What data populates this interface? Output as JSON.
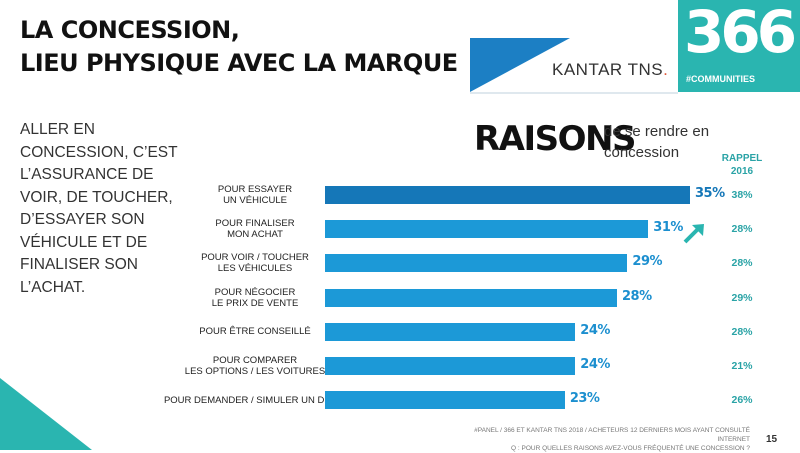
{
  "header": {
    "title_line1": "LA CONCESSION,",
    "title_line2": "LIEU PHYSIQUE AVEC LA MARQUE"
  },
  "body_text": "ALLER EN\nCONCESSION, C’EST\nL’ASSURANCE DE\nVOIR, DE TOUCHER,\nD’ESSAYER SON\nVÉHICULE ET DE\nFINALISER SON\nL’ACHAT.",
  "logo": {
    "number": "366",
    "communities": "#COMMUNITIES",
    "kantar_main": "KANTAR TNS",
    "kantar_mark": "."
  },
  "chart_data": {
    "type": "bar",
    "orientation": "horizontal",
    "title": "RAISONS",
    "subtitle": "de se rendre en concession",
    "categories": [
      "POUR ESSAYER\nUN VÉHICULE",
      "POUR FINALISER\nMON ACHAT",
      "POUR VOIR / TOUCHER\nLES VÉHICULES",
      "POUR NÉGOCIER\nLE PRIX DE VENTE",
      "POUR ÊTRE CONSEILLÉ",
      "POUR COMPARER\nLES OPTIONS / LES VOITURES",
      "POUR DEMANDER / SIMULER UN DEVIS"
    ],
    "values": [
      35,
      31,
      29,
      28,
      24,
      24,
      23
    ],
    "value_labels": [
      "35%",
      "31%",
      "29%",
      "28%",
      "24%",
      "24%",
      "23%"
    ],
    "rappel_header": "RAPPEL\n2016",
    "rappel_values": [
      "38%",
      "28%",
      "28%",
      "29%",
      "28%",
      "21%",
      "26%"
    ],
    "colors": {
      "first_bar": "#1577b8",
      "bar": "#1c99d7",
      "rappel": "#2aa3a6",
      "trend_arrow": "#2ab5b0"
    }
  },
  "footer": {
    "source": "#PANEL / 366 ET KANTAR TNS 2018 / ACHETEURS 12 DERNIERS MOIS AYANT CONSULTÉ INTERNET",
    "question": "Q : POUR QUELLES RAISONS AVEZ-VOUS FRÉQUENTÉ UNE CONCESSION ?",
    "page": "15"
  }
}
